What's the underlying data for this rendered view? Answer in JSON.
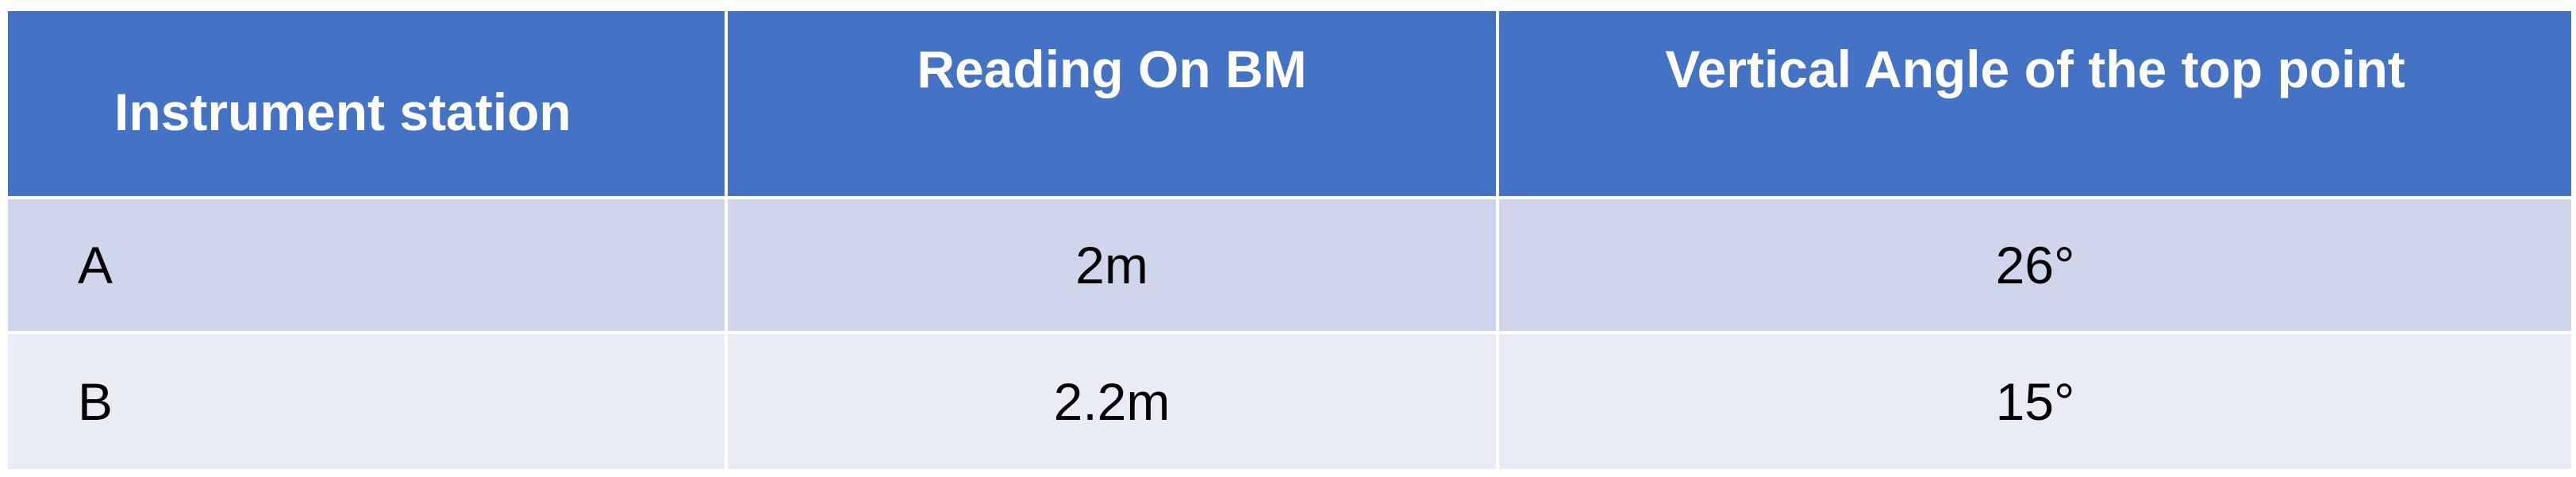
{
  "table": {
    "headers": [
      "Instrument station",
      "Reading On BM",
      "Vertical Angle of the top point"
    ],
    "rows": [
      {
        "station": "A",
        "reading": "2m",
        "angle": "26°"
      },
      {
        "station": "B",
        "reading": "2.2m",
        "angle": "15°"
      }
    ]
  },
  "colors": {
    "header_bg": "#4472c4",
    "row_odd_bg": "#cfd5ea",
    "row_even_bg": "#e9ebf5",
    "header_text": "#ffffff"
  }
}
